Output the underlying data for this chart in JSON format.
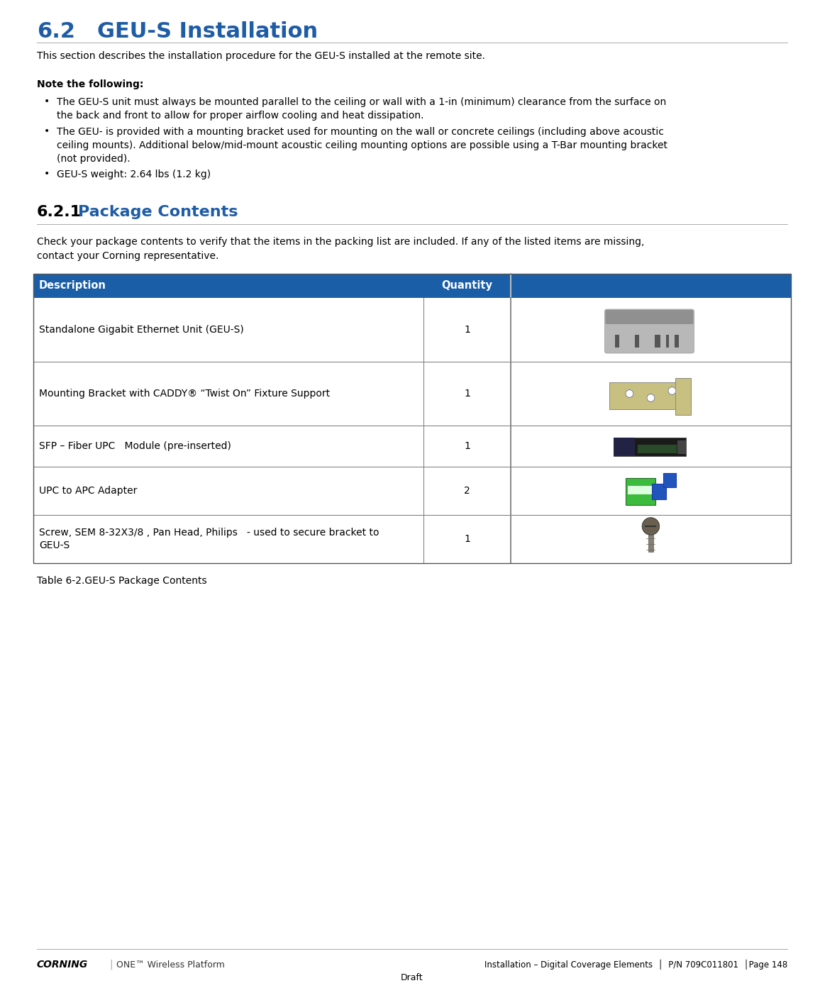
{
  "title_number": "6.2",
  "title_text": "GEU-S Installation",
  "title_color": "#1F5CA6",
  "body_text_color": "#000000",
  "intro_text": "This section describes the installation procedure for the GEU-S installed at the remote site.",
  "note_header": "Note the following:",
  "bullet1": "The GEU-S unit must always be mounted parallel to the ceiling or wall with a 1-in (minimum) clearance from the surface on\nthe back and front to allow for proper airflow cooling and heat dissipation.",
  "bullet2": "The GEU- is provided with a mounting bracket used for mounting on the wall or concrete ceilings (including above acoustic\nceiling mounts). Additional below/mid-mount acoustic ceiling mounting options are possible using a T-Bar mounting bracket\n(not provided).",
  "bullet3": "GEU-S weight: 2.64 lbs (1.2 kg)",
  "section_621": "6.2.1",
  "section_621_title": "Package Contents",
  "section_621_intro1": "Check your package contents to verify that the items in the packing list are included. If any of the listed items are missing,",
  "section_621_intro2": "contact your Corning representative.",
  "table_header_bg": "#1A5EA8",
  "table_header_text_color": "#FFFFFF",
  "table_rows": [
    {
      "description": "Standalone Gigabit Ethernet Unit (GEU-S)",
      "quantity": "1"
    },
    {
      "description": "Mounting Bracket with CADDY® “Twist On” Fixture Support",
      "quantity": "1"
    },
    {
      "description": "SFP – Fiber UPC   Module (pre-inserted)",
      "quantity": "1"
    },
    {
      "description": "UPC to APC Adapter",
      "quantity": "2"
    },
    {
      "description": "Screw, SEM 8-32X3/8 , Pan Head, Philips   - used to secure bracket to\nGEU-S",
      "quantity": "1"
    }
  ],
  "table_caption": "Table 6-2.GEU-S Package Contents",
  "footer_left": "Installation – Digital Coverage Elements",
  "footer_mid": "P/N 709C011801",
  "footer_right": "Page 148",
  "footer_sub": "Draft",
  "bg_color": "#FFFFFF"
}
